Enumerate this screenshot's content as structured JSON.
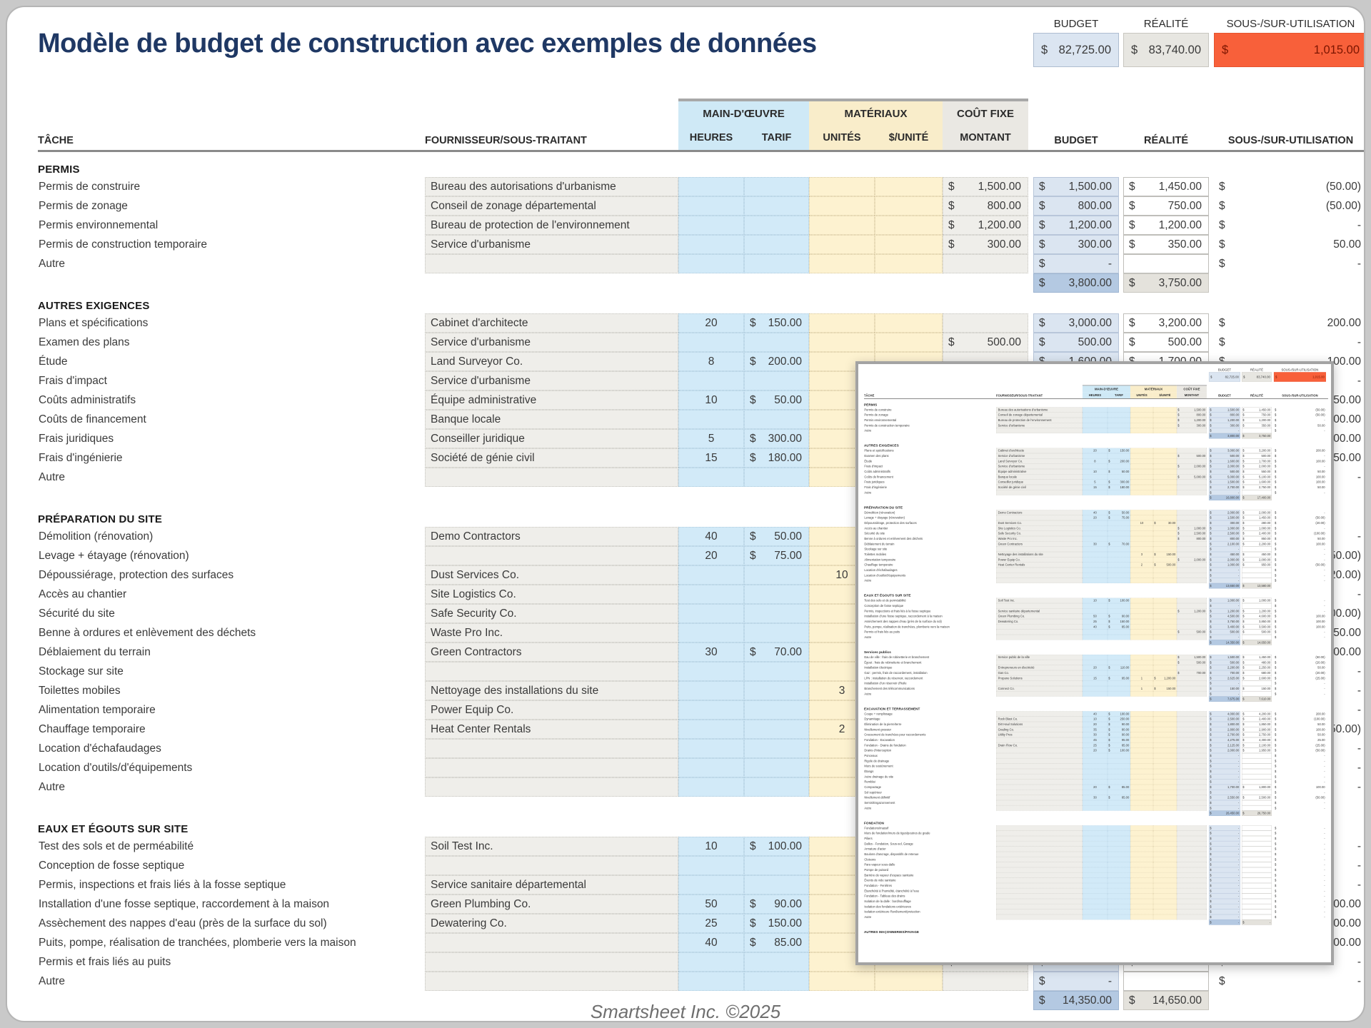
{
  "page": {
    "title": "Modèle de budget de construction avec exemples de données",
    "footer": "Smartsheet Inc. ©2025"
  },
  "summary": {
    "budget_label": "BUDGET",
    "actual_label": "RÉALITÉ",
    "variance_label": "SOUS-/SUR-UTILISATION",
    "currency": "$",
    "budget": "82,725.00",
    "actual": "83,740.00",
    "variance": "1,015.00"
  },
  "columns": {
    "task": "TÂCHE",
    "supplier": "FOURNISSEUR/SOUS-TRAITANT",
    "group_labor": "MAIN-D'ŒUVRE",
    "hours": "HEURES",
    "rate": "TARIF",
    "group_materials": "MATÉRIAUX",
    "units": "UNITÉS",
    "unit_price": "$/UNITÉ",
    "group_fixed": "COÛT FIXE",
    "amount": "MONTANT",
    "budget": "BUDGET",
    "actual": "RÉALITÉ",
    "variance": "SOUS-/SUR-UTILISATION"
  },
  "sections": [
    {
      "name": "PERMIS",
      "in_main": true,
      "rows": [
        {
          "task": "Permis de construire",
          "supplier": "Bureau des autorisations d'urbanisme",
          "amount": "1,500.00",
          "budget": "1,500.00",
          "actual": "1,450.00",
          "variance": "(50.00)"
        },
        {
          "task": "Permis de zonage",
          "supplier": "Conseil de zonage départemental",
          "amount": "800.00",
          "budget": "800.00",
          "actual": "750.00",
          "variance": "(50.00)"
        },
        {
          "task": "Permis environnemental",
          "supplier": "Bureau de protection de l'environnement",
          "amount": "1,200.00",
          "budget": "1,200.00",
          "actual": "1,200.00",
          "variance": "-"
        },
        {
          "task": "Permis de construction temporaire",
          "supplier": "Service d'urbanisme",
          "amount": "300.00",
          "budget": "300.00",
          "actual": "350.00",
          "variance": "50.00"
        },
        {
          "task": "Autre",
          "supplier": "",
          "budget": "-",
          "variance": "-"
        }
      ],
      "total_budget": "3,800.00",
      "total_actual": "3,750.00"
    },
    {
      "name": "AUTRES EXIGENCES",
      "in_main": true,
      "rows": [
        {
          "task": "Plans et spécifications",
          "supplier": "Cabinet d'architecte",
          "hours": "20",
          "rate": "150.00",
          "budget": "3,000.00",
          "actual": "3,200.00",
          "variance": "200.00"
        },
        {
          "task": "Examen des plans",
          "supplier": "Service d'urbanisme",
          "amount": "500.00",
          "budget": "500.00",
          "actual": "500.00",
          "variance": "-"
        },
        {
          "task": "Étude",
          "supplier": "Land Surveyor Co.",
          "hours": "8",
          "rate": "200.00",
          "budget": "1,600.00",
          "actual": "1,700.00",
          "variance": "100.00"
        },
        {
          "task": "Frais d'impact",
          "supplier": "Service d'urbanisme",
          "amount": "2,000.00",
          "budget": "2,000.00",
          "actual": "2,000.00",
          "variance": "-"
        },
        {
          "task": "Coûts administratifs",
          "supplier": "Équipe administrative",
          "hours": "10",
          "rate": "50.00",
          "budget": "500.00",
          "actual": "550.00",
          "variance": "50.00"
        },
        {
          "task": "Coûts de financement",
          "supplier": "Banque locale",
          "amount": "5,000.00",
          "budget": "5,000.00",
          "actual": "5,100.00",
          "variance": "100.00"
        },
        {
          "task": "Frais juridiques",
          "supplier": "Conseiller juridique",
          "hours": "5",
          "rate": "300.00",
          "budget": "1,500.00",
          "actual": "1,600.00",
          "variance": "100.00"
        },
        {
          "task": "Frais d'ingénierie",
          "supplier": "Société de génie civil",
          "hours": "15",
          "rate": "180.00",
          "budget": "2,700.00",
          "actual": "2,750.00",
          "variance": "50.00"
        },
        {
          "task": "Autre",
          "supplier": "",
          "budget": "-",
          "variance": "-"
        }
      ],
      "total_budget": "16,800.00",
      "total_actual": "17,400.00"
    },
    {
      "name": "PRÉPARATION DU SITE",
      "in_main": true,
      "rows": [
        {
          "task": "Démolition (rénovation)",
          "supplier": "Demo Contractors",
          "hours": "40",
          "rate": "50.00",
          "budget": "2,000.00",
          "actual": "2,000.00",
          "variance": "-"
        },
        {
          "task": "Levage + étayage (rénovation)",
          "supplier": "",
          "hours": "20",
          "rate": "75.00",
          "budget": "1,500.00",
          "actual": "1,450.00",
          "variance": "(50.00)"
        },
        {
          "task": "Dépoussiérage, protection des surfaces",
          "supplier": "Dust Services Co.",
          "units": "10",
          "unit_price": "30.00",
          "budget": "300.00",
          "actual": "280.00",
          "variance": "(20.00)"
        },
        {
          "task": "Accès au chantier",
          "supplier": "Site Logistics Co.",
          "amount": "1,000.00",
          "budget": "1,000.00",
          "actual": "1,000.00",
          "variance": "-"
        },
        {
          "task": "Sécurité du site",
          "supplier": "Safe Security Co.",
          "amount": "2,500.00",
          "budget": "2,500.00",
          "actual": "2,400.00",
          "variance": "(100.00)"
        },
        {
          "task": "Benne à ordures et enlèvement des déchets",
          "supplier": "Waste Pro Inc.",
          "amount": "800.00",
          "budget": "800.00",
          "actual": "850.00",
          "variance": "50.00"
        },
        {
          "task": "Déblaiement du terrain",
          "supplier": "Green Contractors",
          "hours": "30",
          "rate": "70.00",
          "budget": "2,100.00",
          "actual": "2,200.00",
          "variance": "100.00"
        },
        {
          "task": "Stockage sur site",
          "supplier": "",
          "budget": "-",
          "variance": "-"
        },
        {
          "task": "Toilettes mobiles",
          "supplier": "Nettoyage des installations du site",
          "units": "3",
          "unit_price": "150.00",
          "budget": "450.00",
          "actual": "450.00",
          "variance": "-"
        },
        {
          "task": "Alimentation temporaire",
          "supplier": "Power Equip Co.",
          "amount": "2,000.00",
          "budget": "2,000.00",
          "actual": "2,000.00",
          "variance": "-"
        },
        {
          "task": "Chauffage temporaire",
          "supplier": "Heat Center Rentals",
          "units": "2",
          "unit_price": "500.00",
          "budget": "1,000.00",
          "actual": "950.00",
          "variance": "(50.00)"
        },
        {
          "task": "Location d'échafaudages",
          "supplier": "",
          "budget": "-",
          "variance": "-"
        },
        {
          "task": "Location d'outils/d'équipements",
          "supplier": "",
          "budget": "-",
          "variance": "-"
        },
        {
          "task": "Autre",
          "supplier": "",
          "budget": "-",
          "variance": "-"
        }
      ],
      "total_budget": "13,650.00",
      "total_actual": "13,580.00"
    },
    {
      "name": "EAUX ET ÉGOUTS SUR SITE",
      "in_main": true,
      "rows": [
        {
          "task": "Test des sols et de perméabilité",
          "supplier": "Soil Test Inc.",
          "hours": "10",
          "rate": "100.00",
          "budget": "1,000.00",
          "actual": "1,000.00",
          "variance": "-"
        },
        {
          "task": "Conception de fosse septique",
          "supplier": "",
          "budget": "-",
          "variance": "-"
        },
        {
          "task": "Permis, inspections et frais liés à la fosse septique",
          "supplier": "Service sanitaire départemental",
          "amount": "1,200.00",
          "budget": "1,200.00",
          "actual": "1,200.00",
          "variance": "-"
        },
        {
          "task": "Installation d'une fosse septique, raccordement à la maison",
          "supplier": "Green Plumbing Co.",
          "hours": "50",
          "rate": "90.00",
          "budget": "4,500.00",
          "actual": "4,600.00",
          "variance": "100.00"
        },
        {
          "task": "Assèchement des nappes d'eau (près de la surface du sol)",
          "supplier": "Dewatering Co.",
          "hours": "25",
          "rate": "150.00",
          "budget": "3,750.00",
          "actual": "3,850.00",
          "variance": "100.00"
        },
        {
          "task": "Puits, pompe, réalisation de tranchées, plomberie vers la maison",
          "supplier": "",
          "hours": "40",
          "rate": "85.00",
          "budget": "3,400.00",
          "actual": "3,500.00",
          "variance": "100.00"
        },
        {
          "task": "Permis et frais liés au puits",
          "supplier": "",
          "amount": "500.00",
          "budget": "500.00",
          "actual": "500.00",
          "variance": "-"
        },
        {
          "task": "Autre",
          "supplier": "",
          "budget": "-",
          "variance": "-"
        }
      ],
      "total_budget": "14,350.00",
      "total_actual": "14,650.00"
    },
    {
      "name": "Services publics",
      "in_main": false,
      "rows": [
        {
          "task": "Eau de ville : frais de robinetterie et branchement",
          "supplier": "Service public de la ville",
          "amount": "1,500.00",
          "budget": "1,500.00",
          "actual": "1,450.00",
          "variance": "(50.00)"
        },
        {
          "task": "Égout : frais de robinetterie et branchement",
          "supplier": "",
          "amount": "500.00",
          "budget": "500.00",
          "actual": "480.00",
          "variance": "(20.00)"
        },
        {
          "task": "Installation électrique",
          "supplier": "Entrepreneurs en électricité",
          "hours": "20",
          "rate": "110.00",
          "budget": "2,200.00",
          "actual": "2,250.00",
          "variance": "50.00"
        },
        {
          "task": "Gaz : permis, frais de raccordement, installation",
          "supplier": "Gas Co.",
          "amount": "700.00",
          "budget": "700.00",
          "actual": "680.00",
          "variance": "(20.00)"
        },
        {
          "task": "LPN : installation du réservoir, raccordement",
          "supplier": "Propane Solutions",
          "hours": "15",
          "rate": "95.00",
          "units": "1",
          "unit_price": "1,200.00",
          "budget": "2,625.00",
          "actual": "2,600.00",
          "variance": "(25.00)"
        },
        {
          "task": "Installation d'un réservoir d'huile",
          "supplier": "",
          "budget": "-",
          "variance": "-"
        },
        {
          "task": "Branchement des télécommunications",
          "supplier": "Connect Co.",
          "units": "1",
          "unit_price": "150.00",
          "budget": "150.00",
          "actual": "150.00",
          "variance": "-"
        },
        {
          "task": "Autre",
          "supplier": "",
          "budget": "-",
          "variance": "-"
        }
      ],
      "total_budget": "7,675.00",
      "total_actual": "7,610.00"
    },
    {
      "name": "EXCAVATION ET TERRASSEMENT",
      "in_main": false,
      "rows": [
        {
          "task": "Coupe + remplissage",
          "supplier": "",
          "hours": "40",
          "rate": "100.00",
          "budget": "4,000.00",
          "actual": "4,200.00",
          "variance": "200.00"
        },
        {
          "task": "Dynamitage",
          "supplier": "Rock Blast Co.",
          "hours": "10",
          "rate": "250.00",
          "budget": "2,500.00",
          "actual": "2,400.00",
          "variance": "(100.00)"
        },
        {
          "task": "Élimination de la pierre/terre",
          "supplier": "Dirt Haul Solutions",
          "hours": "20",
          "rate": "90.00",
          "budget": "1,800.00",
          "actual": "1,850.00",
          "variance": "50.00"
        },
        {
          "task": "Nivellement grossier",
          "supplier": "Grading Co.",
          "hours": "35",
          "rate": "80.00",
          "budget": "2,800.00",
          "actual": "2,900.00",
          "variance": "100.00"
        },
        {
          "task": "Creusement de tranchées pour raccordements",
          "supplier": "Utility Pros",
          "hours": "30",
          "rate": "90.00",
          "budget": "2,700.00",
          "actual": "2,750.00",
          "variance": "50.00"
        },
        {
          "task": "Fondation - Excavation",
          "supplier": "",
          "hours": "45",
          "rate": "95.00",
          "budget": "4,275.00",
          "actual": "4,300.00",
          "variance": "25.00"
        },
        {
          "task": "Fondation - Drains de fondation",
          "supplier": "Drain Flow Co.",
          "hours": "25",
          "rate": "85.00",
          "budget": "2,125.00",
          "actual": "2,100.00",
          "variance": "(25.00)"
        },
        {
          "task": "Drains d'interception",
          "supplier": "",
          "hours": "20",
          "rate": "100.00",
          "budget": "2,000.00",
          "actual": "1,950.00",
          "variance": "(50.00)"
        },
        {
          "task": "Ponceaux",
          "supplier": "",
          "budget": "-",
          "variance": "-"
        },
        {
          "task": "Rigole de drainage",
          "supplier": "",
          "budget": "-",
          "variance": "-"
        },
        {
          "task": "Murs de soutènement",
          "supplier": "",
          "budget": "-",
          "variance": "-"
        },
        {
          "task": "Étangs",
          "supplier": "",
          "budget": "-",
          "variance": "-"
        },
        {
          "task": "Autre drainage du site",
          "supplier": "",
          "budget": "-",
          "variance": "-"
        },
        {
          "task": "Remblai",
          "supplier": "",
          "budget": "-",
          "variance": "-"
        },
        {
          "task": "Compactage",
          "supplier": "",
          "hours": "20",
          "rate": "85.00",
          "budget": "1,700.00",
          "actual": "1,800.00",
          "variance": "100.00"
        },
        {
          "task": "Sol supérieur",
          "supplier": "",
          "budget": "-",
          "variance": "-"
        },
        {
          "task": "Nivellement définitif",
          "supplier": "",
          "hours": "30",
          "rate": "85.00",
          "budget": "2,550.00",
          "actual": "2,500.00",
          "variance": "(50.00)"
        },
        {
          "task": "Semis/Engazonnement",
          "supplier": "",
          "budget": "-",
          "variance": "-"
        },
        {
          "task": "Autre",
          "supplier": "",
          "budget": "-",
          "variance": "-"
        }
      ],
      "total_budget": "26,450.00",
      "total_actual": "26,750.00"
    },
    {
      "name": "FONDATION",
      "in_main": false,
      "rows": [
        {
          "task": "Fondations/massif",
          "supplier": "",
          "budget": "-",
          "variance": "-"
        },
        {
          "task": "Murs de fondation/murs de tiges/poutres de grade",
          "supplier": "",
          "budget": "-",
          "variance": "-"
        },
        {
          "task": "Piliers",
          "supplier": "",
          "budget": "-",
          "variance": "-"
        },
        {
          "task": "Dalles - Fondation, Sous-sol, Garage",
          "supplier": "",
          "budget": "-",
          "variance": "-"
        },
        {
          "task": "Armature d'acier",
          "supplier": "",
          "budget": "-",
          "variance": "-"
        },
        {
          "task": "Boulons d'ancrage, dispositifs de retenue",
          "supplier": "",
          "budget": "-",
          "variance": "-"
        },
        {
          "task": "Cloisons",
          "supplier": "",
          "budget": "-",
          "variance": "-"
        },
        {
          "task": "Pare-vapeur sous-dalle",
          "supplier": "",
          "budget": "-",
          "variance": "-"
        },
        {
          "task": "Pompe de puisard",
          "supplier": "",
          "budget": "-",
          "variance": "-"
        },
        {
          "task": "Barrière de vapeur d'espace sanitaire",
          "supplier": "",
          "budget": "-",
          "variance": "-"
        },
        {
          "task": "Évents de vide sanitaire",
          "supplier": "",
          "budget": "-",
          "variance": "-"
        },
        {
          "task": "Fondation - Fenêtres",
          "supplier": "",
          "budget": "-",
          "variance": "-"
        },
        {
          "task": "Étanchéité à l'humidité, étanchéité à l'eau",
          "supplier": "",
          "budget": "-",
          "variance": "-"
        },
        {
          "task": "Fondation - Tableau des drains",
          "supplier": "",
          "budget": "-",
          "variance": "-"
        },
        {
          "task": "Isolation de la dalle : bord/soufflage",
          "supplier": "",
          "budget": "-",
          "variance": "-"
        },
        {
          "task": "Isolation des fondations extérieures",
          "supplier": "",
          "budget": "-",
          "variance": "-"
        },
        {
          "task": "Isolation extérieure Revêtement/protection",
          "supplier": "",
          "budget": "-",
          "variance": "-"
        },
        {
          "task": "Autre",
          "supplier": "",
          "budget": "-",
          "variance": "-"
        }
      ],
      "total_budget": "-",
      "total_actual": "-"
    },
    {
      "name": "AUTRES MAÇONNERIES/PAVAGE",
      "in_main": false,
      "rows": []
    }
  ]
}
